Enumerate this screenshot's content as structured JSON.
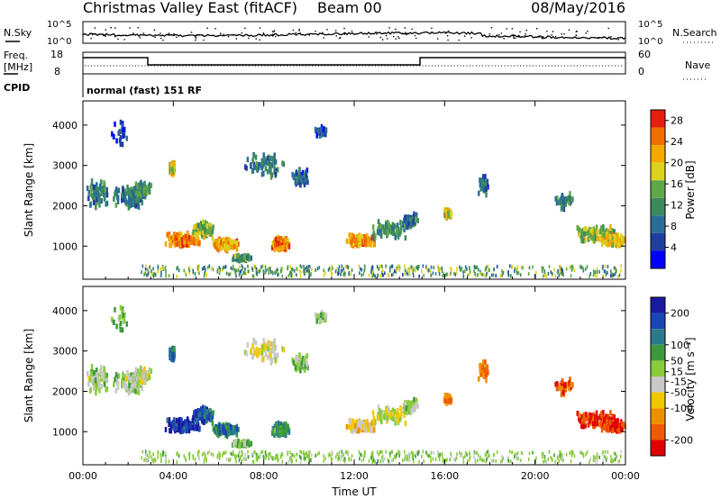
{
  "header": {
    "title": "Christmas Valley East (fitACF)",
    "beam": "Beam 00",
    "date": "08/May/2016"
  },
  "status_panels": {
    "nsky_label": "N.Sky",
    "nsky_ticks": [
      "10^5",
      "10^0"
    ],
    "nsearch_label": "N.Search",
    "freq_label_line1": "Freq.",
    "freq_label_line2": "[MHz]",
    "freq_ticks": [
      "18",
      "8"
    ],
    "nave_label": "Nave",
    "nave_ticks": [
      "60",
      "0"
    ],
    "cpid_label": "CPID",
    "cpid_text": "normal (fast) 151 RF"
  },
  "chart_data": [
    {
      "type": "heatmap",
      "name": "power",
      "ylabel": "Slant Range [km]",
      "xlabel": "Time UT",
      "x_ticks": [
        "00:00",
        "04:00",
        "08:00",
        "12:00",
        "16:00",
        "20:00",
        "00:00"
      ],
      "xlim_hours": [
        0,
        24
      ],
      "y_ticks": [
        1000,
        2000,
        3000,
        4000
      ],
      "ylim_km": [
        180,
        4600
      ],
      "colorbar": {
        "label": "Power [dB]",
        "ticks": [
          4,
          8,
          12,
          16,
          20,
          24,
          28
        ],
        "range": [
          0,
          30
        ],
        "colors": [
          "#0000ff",
          "#1f3fa0",
          "#2a6e96",
          "#3d8a5c",
          "#5fa848",
          "#dcd21e",
          "#f5a800",
          "#f06e00",
          "#e52010"
        ]
      }
    },
    {
      "type": "heatmap",
      "name": "velocity",
      "ylabel": "Slant Range [km]",
      "xlabel": "Time UT",
      "x_ticks": [
        "00:00",
        "04:00",
        "08:00",
        "12:00",
        "16:00",
        "20:00",
        "00:00"
      ],
      "xlim_hours": [
        0,
        24
      ],
      "y_ticks": [
        1000,
        2000,
        3000,
        4000
      ],
      "ylim_km": [
        180,
        4600
      ],
      "colorbar": {
        "label": "Velocity [m s⁻¹]",
        "ticks": [
          200,
          100,
          50,
          15,
          -15,
          -50,
          -100,
          -200
        ],
        "range": [
          -250,
          250
        ],
        "colors": [
          "#1a1aa0",
          "#1a46b4",
          "#2a7a8c",
          "#3c9a3c",
          "#8acc3c",
          "#c8c8c8",
          "#f0c800",
          "#f09000",
          "#f05a00",
          "#e00000"
        ]
      }
    }
  ],
  "colors": {
    "axis": "#000000",
    "background": "#ffffff"
  }
}
